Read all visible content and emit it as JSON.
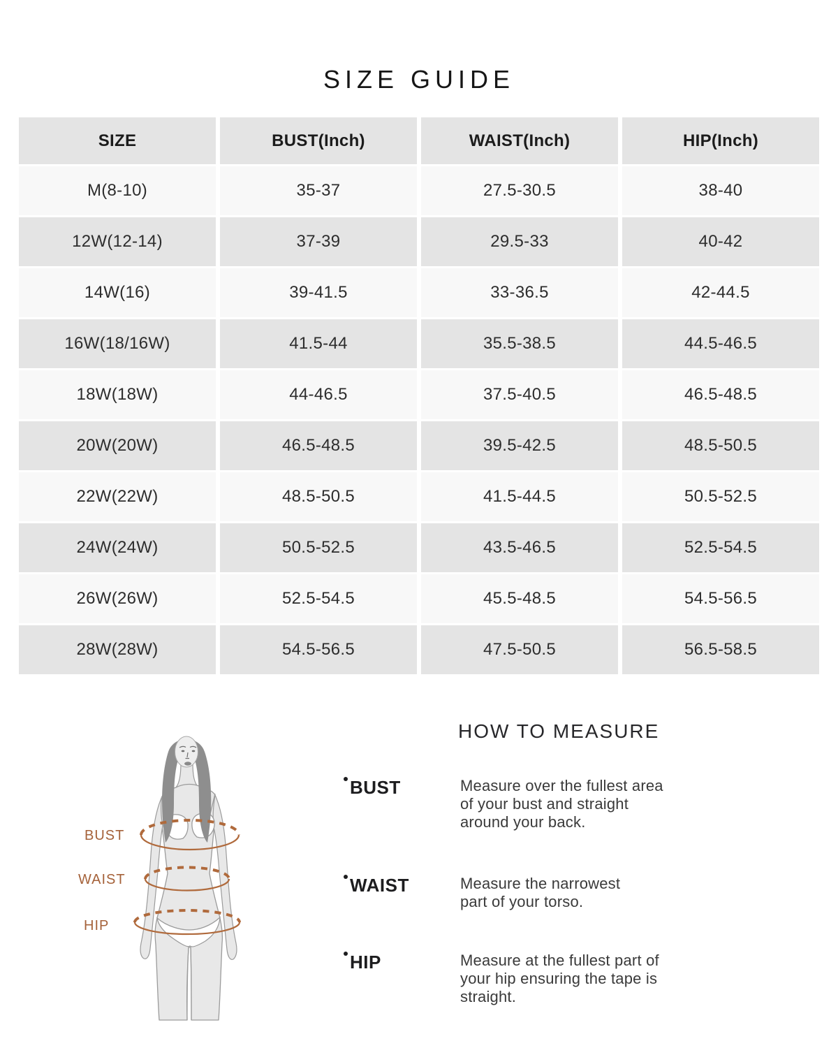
{
  "page": {
    "title": "SIZE GUIDE"
  },
  "colors": {
    "header_bg": "#e4e4e4",
    "row_light": "#f8f8f8",
    "row_dark": "#e4e4e4",
    "accent_orange_labels": "#a5623a",
    "accent_orange_ellipses": "#b06a3c",
    "text_dark": "#1b1b1b"
  },
  "chart_data": {
    "type": "table",
    "title": "SIZE GUIDE",
    "columns": [
      "SIZE",
      "BUST(Inch)",
      "WAIST(Inch)",
      "HIP(Inch)"
    ],
    "rows": [
      [
        "M(8-10)",
        "35-37",
        "27.5-30.5",
        "38-40"
      ],
      [
        "12W(12-14)",
        "37-39",
        "29.5-33",
        "40-42"
      ],
      [
        "14W(16)",
        "39-41.5",
        "33-36.5",
        "42-44.5"
      ],
      [
        "16W(18/16W)",
        "41.5-44",
        "35.5-38.5",
        "44.5-46.5"
      ],
      [
        "18W(18W)",
        "44-46.5",
        "37.5-40.5",
        "46.5-48.5"
      ],
      [
        "20W(20W)",
        "46.5-48.5",
        "39.5-42.5",
        "48.5-50.5"
      ],
      [
        "22W(22W)",
        "48.5-50.5",
        "41.5-44.5",
        "50.5-52.5"
      ],
      [
        "24W(24W)",
        "50.5-52.5",
        "43.5-46.5",
        "52.5-54.5"
      ],
      [
        "26W(26W)",
        "52.5-54.5",
        "45.5-48.5",
        "54.5-56.5"
      ],
      [
        "28W(28W)",
        "54.5-56.5",
        "47.5-50.5",
        "56.5-58.5"
      ]
    ]
  },
  "how_to_measure": {
    "heading": "HOW TO MEASURE",
    "items": [
      {
        "label": "BUST",
        "description": "Measure over the fullest area\nof your bust and straight\naround your back."
      },
      {
        "label": "WAIST",
        "description": "Measure the narrowest\npart of your torso."
      },
      {
        "label": "HIP",
        "description": "Measure at the fullest part of\nyour hip ensuring the tape is\nstraight."
      }
    ]
  },
  "figure": {
    "labels": [
      "BUST",
      "WAIST",
      "HIP"
    ]
  }
}
